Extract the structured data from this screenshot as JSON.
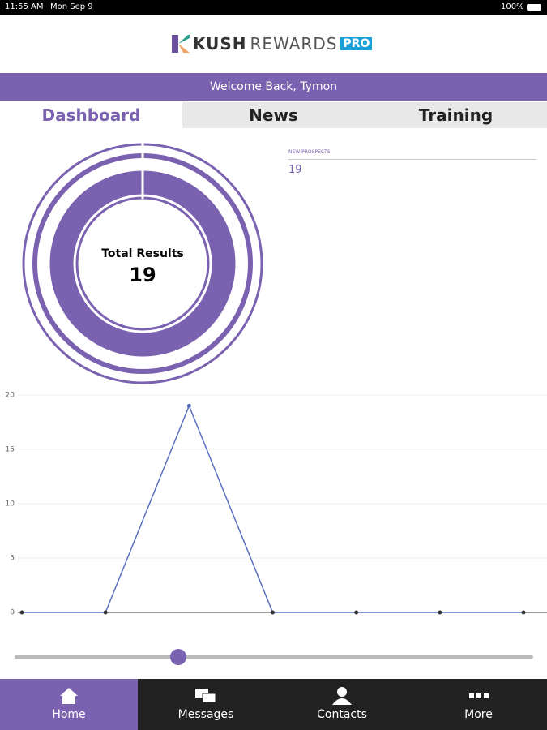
{
  "status_bar": {
    "time": "11:55 AM",
    "date": "Mon Sep 9",
    "battery": "100%"
  },
  "header": {
    "logo_bold": "KUSH",
    "logo_light": "REWARDS",
    "logo_badge": "PRO"
  },
  "welcome": "Welcome Back, Tymon",
  "tabs": [
    "Dashboard",
    "News",
    "Training"
  ],
  "summary": {
    "label": "Total Results",
    "value": "19"
  },
  "prospects": {
    "label": "NEW PROSPECTS",
    "value": "19"
  },
  "chart_data": {
    "type": "line",
    "categories": [
      null,
      null,
      null,
      null,
      null,
      null,
      null
    ],
    "series": [
      {
        "color": "#5a6fc0",
        "values": [
          0,
          0,
          19,
          0,
          0,
          0,
          0
        ]
      }
    ],
    "ylim": [
      0,
      20
    ],
    "yticks": [
      0,
      5,
      10,
      15,
      20
    ],
    "grid": true
  },
  "nav": [
    "Home",
    "Messages",
    "Contacts",
    "More"
  ]
}
